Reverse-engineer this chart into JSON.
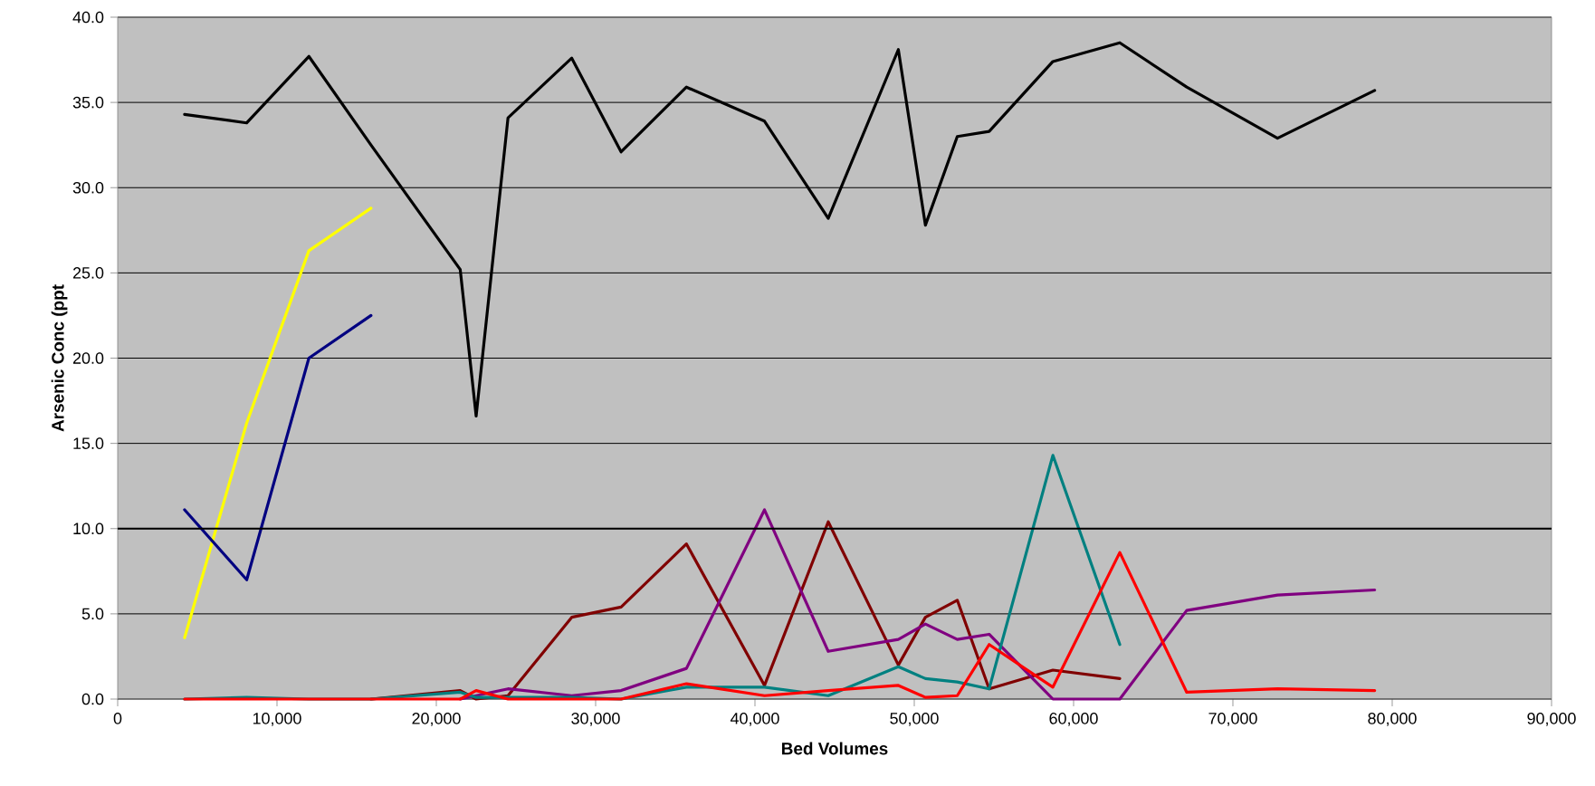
{
  "chart_data": {
    "type": "line",
    "xlabel": "Bed Volumes",
    "ylabel": "Arsenic Conc (ppt",
    "grid": "y",
    "x": [
      4200,
      8100,
      12000,
      15900,
      21500,
      22500,
      24500,
      28500,
      31600,
      35700,
      40600,
      44600,
      49000,
      50700,
      52700,
      54700,
      58700,
      62900,
      67100,
      72800,
      78900
    ],
    "xlim": [
      0,
      90000
    ],
    "xticks": [
      0,
      {
        "value": 10000,
        "label": "10,000"
      },
      {
        "value": 20000,
        "label": "20,000"
      },
      {
        "value": 30000,
        "label": "30,000"
      },
      {
        "value": 40000,
        "label": "40,000"
      },
      {
        "value": 50000,
        "label": "50,000"
      },
      {
        "value": 60000,
        "label": "60,000"
      },
      {
        "value": 70000,
        "label": "70,000"
      },
      {
        "value": 80000,
        "label": "80,000"
      },
      {
        "value": 90000,
        "label": "90,000"
      }
    ],
    "ylim": [
      0,
      40
    ],
    "yticks": [
      {
        "value": 0,
        "label": "0.0"
      },
      {
        "value": 5,
        "label": "5.0"
      },
      {
        "value": 10,
        "label": "10.0"
      },
      {
        "value": 15,
        "label": "15.0"
      },
      {
        "value": 20,
        "label": "20.0"
      },
      {
        "value": 25,
        "label": "25.0"
      },
      {
        "value": 30,
        "label": "30.0"
      },
      {
        "value": 35,
        "label": "35.0"
      },
      {
        "value": 40,
        "label": "40.0"
      }
    ],
    "ref_lines": [
      {
        "axis": "y",
        "value": 10,
        "color": "#000000"
      }
    ],
    "series": [
      {
        "color": "#000000",
        "values": [
          34.3,
          33.8,
          37.7,
          32.5,
          25.2,
          16.6,
          34.1,
          37.6,
          32.1,
          35.9,
          33.9,
          28.2,
          38.1,
          27.8,
          33.0,
          33.3,
          37.4,
          38.5,
          35.9,
          32.9,
          35.7
        ]
      },
      {
        "color": "#ffff00",
        "values": [
          3.6,
          16.2,
          26.3,
          28.8,
          null,
          null,
          null,
          null,
          null,
          null,
          null,
          null,
          null,
          null,
          null,
          null,
          null,
          null,
          null,
          null,
          null
        ]
      },
      {
        "color": "#000080",
        "values": [
          11.1,
          7.0,
          20.0,
          22.5,
          null,
          null,
          null,
          null,
          null,
          null,
          null,
          null,
          null,
          null,
          null,
          null,
          null,
          null,
          null,
          null,
          null
        ]
      },
      {
        "color": "#800000",
        "values": [
          null,
          null,
          null,
          0.0,
          0.5,
          0.0,
          0.2,
          4.8,
          5.4,
          9.1,
          0.8,
          10.4,
          2.0,
          4.8,
          5.8,
          0.6,
          1.7,
          1.2,
          null,
          null,
          null
        ]
      },
      {
        "color": "#800080",
        "values": [
          null,
          null,
          null,
          null,
          0.0,
          0.2,
          0.6,
          0.2,
          0.5,
          1.8,
          11.1,
          2.8,
          3.5,
          4.4,
          3.5,
          3.8,
          0.0,
          0.0,
          5.2,
          6.1,
          6.4
        ]
      },
      {
        "color": "#008080",
        "values": [
          0.0,
          0.1,
          0.0,
          0.0,
          0.4,
          0.1,
          0.1,
          0.1,
          0.0,
          0.7,
          0.7,
          0.2,
          1.9,
          1.2,
          1.0,
          0.6,
          14.3,
          3.2,
          null,
          null,
          null
        ]
      },
      {
        "color": "#ff0000",
        "values": [
          0.0,
          0.0,
          0.0,
          0.0,
          0.0,
          0.5,
          0.0,
          0.0,
          0.0,
          0.9,
          0.2,
          0.5,
          0.8,
          0.1,
          0.2,
          3.2,
          0.7,
          8.6,
          0.4,
          0.6,
          0.5
        ]
      }
    ]
  }
}
